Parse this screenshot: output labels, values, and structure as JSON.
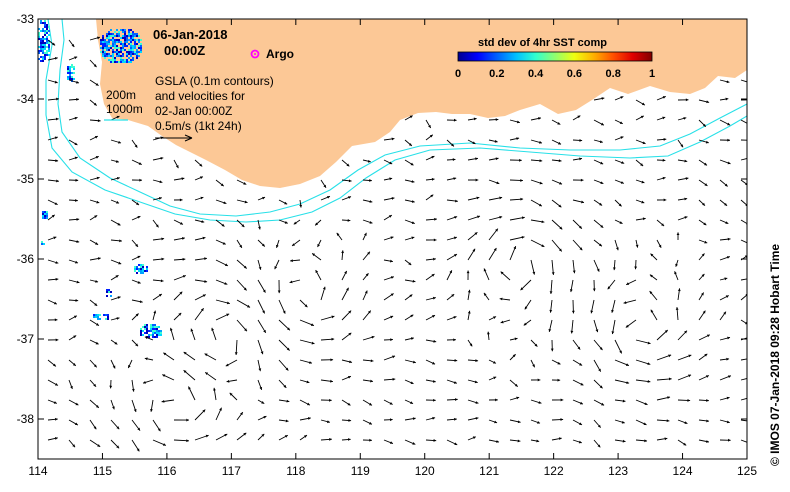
{
  "header": {
    "date": "06-Jan-2018",
    "time": "00:00Z"
  },
  "legend": {
    "argo_label": "Argo",
    "contour_200": "200m",
    "contour_1000": "1000m",
    "gsla_line1": "GSLA (0.1m contours)",
    "gsla_line2": "and velocities for",
    "gsla_line3": "02-Jan 00:00Z",
    "scale_text": "0.5m/s (1kt 24h)"
  },
  "colorbar": {
    "title": "std dev of 4hr SST comp",
    "ticks": [
      "0",
      "0.2",
      "0.4",
      "0.6",
      "0.8",
      "1"
    ],
    "colors": [
      "#00008f",
      "#0000ff",
      "#0060ff",
      "#00c0ff",
      "#30ffcf",
      "#90ff6f",
      "#efff10",
      "#ffb000",
      "#ff5000",
      "#e00000",
      "#800000"
    ]
  },
  "axes": {
    "x_ticks": [
      "114",
      "115",
      "116",
      "117",
      "118",
      "119",
      "120",
      "121",
      "122",
      "123",
      "124",
      "125"
    ],
    "y_ticks": [
      "-33",
      "-34",
      "-35",
      "-36",
      "-37",
      "-38"
    ],
    "x_range": [
      114,
      125
    ],
    "y_range": [
      -38.5,
      -33
    ]
  },
  "credit": "© IMOS 07-Jan-2018 09:28 Hobart Time",
  "colors": {
    "land": "#fcc896",
    "contour": "#28e0e8",
    "argo": "#ff00ff"
  }
}
